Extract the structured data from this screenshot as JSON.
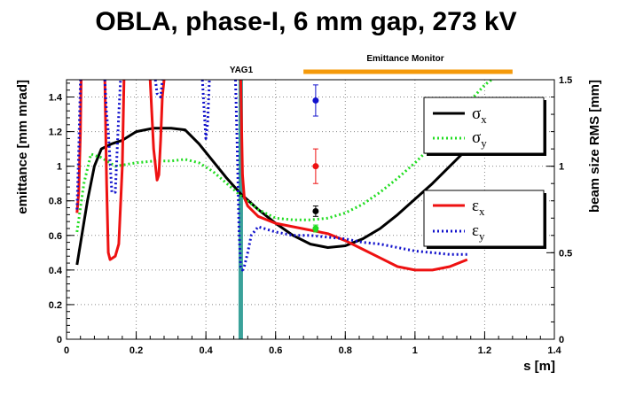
{
  "chart_data": {
    "type": "line",
    "title": "OBLA, phase-I, 6 mm gap, 273 kV",
    "xlabel": "s [m]",
    "ylabel": "emittance [mm mrad]",
    "ylabel_right": "beam size RMS [mm]",
    "xlim": [
      0,
      1.4
    ],
    "ylim": [
      0,
      1.5
    ],
    "ylim_right": [
      0,
      1.5
    ],
    "x_ticks": [
      "0",
      "0.2",
      "0.4",
      "0.6",
      "0.8",
      "1",
      "1.2",
      "1.4"
    ],
    "y_ticks": [
      "0",
      "0.2",
      "0.4",
      "0.6",
      "0.8",
      "1",
      "1.2",
      "1.4"
    ],
    "y_ticks_right": [
      "0",
      "0.5",
      "1",
      "1.5"
    ],
    "grid": true,
    "colors": {
      "sigma_x": "#000000",
      "sigma_y": "#22dd22",
      "eps_x": "#ee1111",
      "eps_y": "#1111cc",
      "yag": "#3aa29a",
      "monitor": "#f59a0a"
    },
    "yag_marker": {
      "label": "YAG1",
      "s": 0.5
    },
    "emittance_monitor": {
      "label": "Emittance Monitor",
      "start": 0.68,
      "end": 1.28
    },
    "legend_beam": {
      "items": [
        {
          "symbol": "σ",
          "sub": "x",
          "color": "#000000",
          "style": "solid"
        },
        {
          "symbol": "σ",
          "sub": "y",
          "color": "#22dd22",
          "style": "dotted"
        }
      ]
    },
    "legend_emittance": {
      "items": [
        {
          "symbol": "ε",
          "sub": "x",
          "color": "#ee1111",
          "style": "solid"
        },
        {
          "symbol": "ε",
          "sub": "y",
          "color": "#1111cc",
          "style": "dotted"
        }
      ]
    },
    "series": [
      {
        "key": "sigma_x",
        "axis": "right",
        "style": "solid",
        "points": [
          [
            0.03,
            0.43
          ],
          [
            0.06,
            0.8
          ],
          [
            0.08,
            1.0
          ],
          [
            0.1,
            1.1
          ],
          [
            0.13,
            1.13
          ],
          [
            0.16,
            1.15
          ],
          [
            0.2,
            1.2
          ],
          [
            0.25,
            1.22
          ],
          [
            0.3,
            1.22
          ],
          [
            0.34,
            1.21
          ],
          [
            0.38,
            1.13
          ],
          [
            0.42,
            1.03
          ],
          [
            0.46,
            0.93
          ],
          [
            0.5,
            0.84
          ],
          [
            0.55,
            0.75
          ],
          [
            0.6,
            0.67
          ],
          [
            0.65,
            0.6
          ],
          [
            0.7,
            0.55
          ],
          [
            0.75,
            0.53
          ],
          [
            0.8,
            0.54
          ],
          [
            0.85,
            0.58
          ],
          [
            0.9,
            0.64
          ],
          [
            0.95,
            0.72
          ],
          [
            1.0,
            0.81
          ],
          [
            1.05,
            0.9
          ],
          [
            1.1,
            1.0
          ],
          [
            1.15,
            1.1
          ]
        ]
      },
      {
        "key": "sigma_y",
        "axis": "right",
        "style": "dotted",
        "points": [
          [
            0.03,
            0.62
          ],
          [
            0.05,
            0.9
          ],
          [
            0.07,
            1.07
          ],
          [
            0.1,
            1.05
          ],
          [
            0.14,
            1.0
          ],
          [
            0.2,
            1.02
          ],
          [
            0.25,
            1.03
          ],
          [
            0.3,
            1.03
          ],
          [
            0.34,
            1.04
          ],
          [
            0.38,
            1.02
          ],
          [
            0.42,
            0.97
          ],
          [
            0.46,
            0.9
          ],
          [
            0.5,
            0.83
          ],
          [
            0.55,
            0.75
          ],
          [
            0.6,
            0.7
          ],
          [
            0.65,
            0.69
          ],
          [
            0.7,
            0.69
          ],
          [
            0.75,
            0.7
          ],
          [
            0.8,
            0.73
          ],
          [
            0.85,
            0.78
          ],
          [
            0.9,
            0.85
          ],
          [
            0.95,
            0.93
          ],
          [
            1.0,
            1.02
          ],
          [
            1.05,
            1.12
          ],
          [
            1.1,
            1.24
          ],
          [
            1.15,
            1.36
          ],
          [
            1.2,
            1.47
          ],
          [
            1.22,
            1.5
          ]
        ]
      },
      {
        "key": "eps_x",
        "axis": "left",
        "style": "solid",
        "points": [
          [
            0.03,
            0.73
          ],
          [
            0.035,
            0.85
          ],
          [
            0.04,
            1.2
          ],
          [
            0.042,
            1.5
          ],
          [
            null,
            null
          ],
          [
            0.11,
            1.5
          ],
          [
            0.115,
            0.9
          ],
          [
            0.12,
            0.5
          ],
          [
            0.125,
            0.46
          ],
          [
            0.14,
            0.48
          ],
          [
            0.15,
            0.55
          ],
          [
            0.16,
            1.0
          ],
          [
            0.165,
            1.5
          ],
          [
            null,
            null
          ],
          [
            0.24,
            1.5
          ],
          [
            0.25,
            1.1
          ],
          [
            0.26,
            0.92
          ],
          [
            0.265,
            0.95
          ],
          [
            0.27,
            1.15
          ],
          [
            0.275,
            1.4
          ],
          [
            0.28,
            1.5
          ],
          [
            null,
            null
          ],
          [
            0.5,
            1.5
          ],
          [
            0.505,
            0.95
          ],
          [
            0.51,
            0.82
          ],
          [
            0.52,
            0.77
          ],
          [
            0.55,
            0.71
          ],
          [
            0.6,
            0.67
          ],
          [
            0.65,
            0.65
          ],
          [
            0.7,
            0.63
          ],
          [
            0.75,
            0.61
          ],
          [
            0.8,
            0.57
          ],
          [
            0.85,
            0.52
          ],
          [
            0.9,
            0.47
          ],
          [
            0.95,
            0.42
          ],
          [
            1.0,
            0.4
          ],
          [
            1.05,
            0.4
          ],
          [
            1.1,
            0.42
          ],
          [
            1.15,
            0.46
          ]
        ]
      },
      {
        "key": "eps_y",
        "axis": "left",
        "style": "dotted",
        "points": [
          [
            0.03,
            0.75
          ],
          [
            0.035,
            1.1
          ],
          [
            0.04,
            1.5
          ],
          [
            null,
            null
          ],
          [
            0.11,
            1.5
          ],
          [
            0.115,
            1.3
          ],
          [
            0.12,
            1.2
          ],
          [
            0.13,
            0.85
          ],
          [
            0.14,
            0.85
          ],
          [
            0.15,
            1.3
          ],
          [
            0.155,
            1.5
          ],
          [
            null,
            null
          ],
          [
            0.255,
            1.5
          ],
          [
            0.26,
            1.42
          ],
          [
            0.27,
            1.4
          ],
          [
            0.275,
            1.5
          ],
          [
            null,
            null
          ],
          [
            0.39,
            1.5
          ],
          [
            0.395,
            1.32
          ],
          [
            0.4,
            1.16
          ],
          [
            0.405,
            1.25
          ],
          [
            0.41,
            1.5
          ],
          [
            null,
            null
          ],
          [
            0.485,
            1.5
          ],
          [
            0.49,
            1.1
          ],
          [
            0.495,
            0.62
          ],
          [
            0.5,
            0.42
          ],
          [
            0.505,
            0.4
          ],
          [
            0.51,
            0.42
          ],
          [
            0.52,
            0.5
          ],
          [
            0.53,
            0.6
          ],
          [
            0.55,
            0.65
          ],
          [
            0.6,
            0.62
          ],
          [
            0.65,
            0.6
          ],
          [
            0.7,
            0.6
          ],
          [
            0.75,
            0.59
          ],
          [
            0.8,
            0.58
          ],
          [
            0.85,
            0.56
          ],
          [
            0.9,
            0.55
          ],
          [
            0.95,
            0.53
          ],
          [
            1.0,
            0.51
          ],
          [
            1.05,
            0.5
          ],
          [
            1.1,
            0.49
          ],
          [
            1.15,
            0.49
          ]
        ]
      }
    ],
    "measurements": [
      {
        "s": 0.715,
        "value": 1.38,
        "err": 0.09,
        "color": "#1111cc"
      },
      {
        "s": 0.715,
        "value": 1.0,
        "err": 0.1,
        "color": "#ee1111"
      },
      {
        "s": 0.715,
        "value": 0.74,
        "err": 0.03,
        "color": "#000000"
      },
      {
        "s": 0.715,
        "value": 0.64,
        "err": 0.02,
        "color": "#22dd22"
      }
    ]
  }
}
